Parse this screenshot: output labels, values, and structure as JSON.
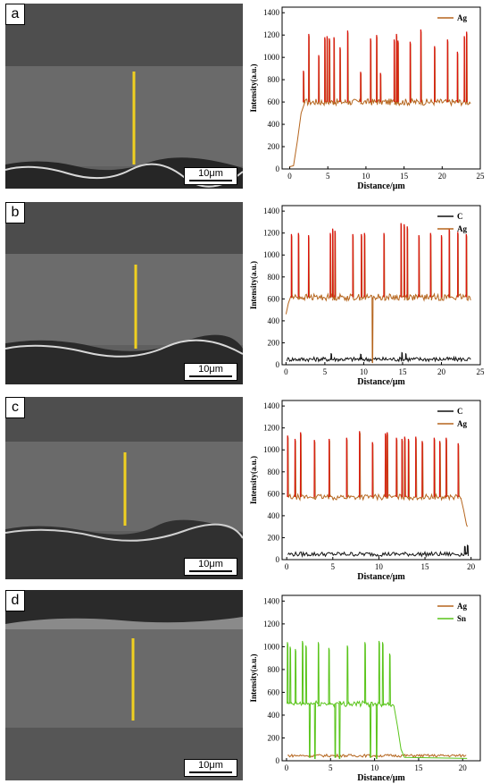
{
  "panels": [
    {
      "label": "a",
      "scale": "10μm"
    },
    {
      "label": "b",
      "scale": "10μm"
    },
    {
      "label": "c",
      "scale": "10μm"
    },
    {
      "label": "d",
      "scale": "10μm"
    }
  ],
  "colors": {
    "Ag": "#b5651d",
    "C": "#111111",
    "Sn": "#59c41a",
    "peak": "#e01010",
    "line": "#f0d020"
  },
  "chart_data": [
    {
      "type": "line",
      "title": "",
      "xlabel": "Distance/μm",
      "ylabel": "Intensity(a.u.)",
      "xlim": [
        -1,
        25
      ],
      "ylim": [
        0,
        1450
      ],
      "xticks": [
        0,
        5,
        10,
        15,
        20,
        25
      ],
      "yticks": [
        0,
        200,
        400,
        600,
        800,
        1000,
        1200,
        1400
      ],
      "legend": "top-right",
      "series": [
        {
          "name": "Ag",
          "color": "#b5651d",
          "peak_color": "#e01010",
          "baseline": 600,
          "noise": 30,
          "rise": [
            [
              0,
              20
            ],
            [
              0.5,
              30
            ],
            [
              1.0,
              250
            ],
            [
              1.5,
              500
            ],
            [
              2.0,
              600
            ]
          ],
          "peaks": [
            [
              1.8,
              880
            ],
            [
              2.5,
              1210
            ],
            [
              3.8,
              1020
            ],
            [
              4.6,
              1180
            ],
            [
              4.9,
              1190
            ],
            [
              5.2,
              1170
            ],
            [
              5.8,
              1180
            ],
            [
              6.6,
              1090
            ],
            [
              7.6,
              1240
            ],
            [
              9.3,
              870
            ],
            [
              10.6,
              1170
            ],
            [
              11.4,
              1200
            ],
            [
              11.9,
              860
            ],
            [
              13.7,
              1160
            ],
            [
              14.0,
              1210
            ],
            [
              14.2,
              1150
            ],
            [
              15.8,
              1140
            ],
            [
              17.2,
              1250
            ],
            [
              19.0,
              1100
            ],
            [
              20.7,
              1160
            ],
            [
              22.0,
              1050
            ],
            [
              22.9,
              1190
            ],
            [
              23.2,
              1230
            ]
          ],
          "xmax": 23.8
        }
      ]
    },
    {
      "type": "line",
      "title": "",
      "xlabel": "Distance/μm",
      "ylabel": "Intensity(a.u.)",
      "xlim": [
        -0.5,
        25
      ],
      "ylim": [
        0,
        1450
      ],
      "xticks": [
        0,
        5,
        10,
        15,
        20,
        25
      ],
      "yticks": [
        0,
        200,
        400,
        600,
        800,
        1000,
        1200,
        1400
      ],
      "legend": "top-right",
      "series": [
        {
          "name": "C",
          "color": "#111111",
          "baseline": 50,
          "noise": 20,
          "peaks": [
            [
              5.8,
              100
            ],
            [
              9.6,
              95
            ],
            [
              14.9,
              110
            ],
            [
              15.4,
              100
            ]
          ],
          "xmax": 23.8
        },
        {
          "name": "Ag",
          "color": "#b5651d",
          "peak_color": "#e01010",
          "baseline": 615,
          "noise": 30,
          "rise": [
            [
              0,
              460
            ],
            [
              0.3,
              560
            ],
            [
              0.6,
              620
            ]
          ],
          "dips": [
            [
              11.1,
              20
            ]
          ],
          "peaks": [
            [
              0.7,
              1190
            ],
            [
              1.6,
              1200
            ],
            [
              2.9,
              1180
            ],
            [
              5.7,
              1200
            ],
            [
              6.0,
              1240
            ],
            [
              6.3,
              1220
            ],
            [
              8.6,
              1190
            ],
            [
              9.7,
              1190
            ],
            [
              10.1,
              1200
            ],
            [
              12.6,
              1200
            ],
            [
              14.8,
              1290
            ],
            [
              15.2,
              1280
            ],
            [
              15.6,
              1260
            ],
            [
              17.1,
              1180
            ],
            [
              18.6,
              1200
            ],
            [
              20.0,
              1180
            ],
            [
              21.0,
              1240
            ],
            [
              22.1,
              1210
            ],
            [
              23.2,
              1190
            ]
          ],
          "xmax": 23.8
        }
      ]
    },
    {
      "type": "line",
      "title": "",
      "xlabel": "Distance/μm",
      "ylabel": "Intensity(a.u.)",
      "xlim": [
        -0.5,
        21
      ],
      "ylim": [
        0,
        1450
      ],
      "xticks": [
        0,
        5,
        10,
        15,
        20
      ],
      "yticks": [
        0,
        200,
        400,
        600,
        800,
        1000,
        1200,
        1400
      ],
      "legend": "top-right",
      "series": [
        {
          "name": "C",
          "color": "#111111",
          "baseline": 50,
          "noise": 20,
          "peaks": [
            [
              19.3,
              120
            ],
            [
              19.6,
              130
            ]
          ],
          "xmax": 19.7
        },
        {
          "name": "Ag",
          "color": "#b5651d",
          "peak_color": "#e01010",
          "baseline": 570,
          "noise": 25,
          "tail": [
            [
              18.9,
              560
            ],
            [
              19.2,
              450
            ],
            [
              19.5,
              320
            ],
            [
              19.6,
              300
            ]
          ],
          "peaks": [
            [
              0.1,
              1130
            ],
            [
              0.9,
              1100
            ],
            [
              1.5,
              1160
            ],
            [
              3.0,
              1090
            ],
            [
              4.6,
              1100
            ],
            [
              6.5,
              1110
            ],
            [
              7.9,
              1170
            ],
            [
              9.3,
              1070
            ],
            [
              10.7,
              1150
            ],
            [
              10.9,
              1160
            ],
            [
              11.9,
              1110
            ],
            [
              12.5,
              1100
            ],
            [
              12.8,
              1120
            ],
            [
              13.2,
              1100
            ],
            [
              14.0,
              1120
            ],
            [
              14.7,
              1080
            ],
            [
              16.0,
              1110
            ],
            [
              16.6,
              1080
            ],
            [
              17.3,
              1110
            ],
            [
              18.6,
              1060
            ]
          ],
          "xmax": 19.6
        }
      ]
    },
    {
      "type": "line",
      "title": "",
      "xlabel": "Distance/μm",
      "ylabel": "Intensity(a.u.)",
      "xlim": [
        -0.5,
        22
      ],
      "ylim": [
        0,
        1450
      ],
      "xticks": [
        0,
        5,
        10,
        15,
        20
      ],
      "yticks": [
        0,
        200,
        400,
        600,
        800,
        1000,
        1200,
        1400
      ],
      "legend": "top-right",
      "series": [
        {
          "name": "Ag",
          "color": "#b5651d",
          "baseline": 45,
          "noise": 12,
          "peaks": [],
          "xmax": 20.5
        },
        {
          "name": "Sn",
          "color": "#59c41a",
          "baseline": 500,
          "noise": 25,
          "tail": [
            [
              12.2,
              480
            ],
            [
              12.6,
              300
            ],
            [
              13.0,
              100
            ],
            [
              13.4,
              30
            ],
            [
              20.5,
              20
            ]
          ],
          "dips": [
            [
              2.6,
              30
            ],
            [
              3.2,
              20
            ],
            [
              5.5,
              30
            ],
            [
              6.0,
              20
            ],
            [
              9.5,
              30
            ],
            [
              10.2,
              20
            ]
          ],
          "peaks": [
            [
              0.1,
              1040
            ],
            [
              0.4,
              1000
            ],
            [
              1.0,
              980
            ],
            [
              1.8,
              1050
            ],
            [
              2.2,
              1010
            ],
            [
              3.6,
              1040
            ],
            [
              4.8,
              990
            ],
            [
              6.9,
              1010
            ],
            [
              8.9,
              1040
            ],
            [
              10.5,
              1050
            ],
            [
              10.9,
              1040
            ],
            [
              11.7,
              940
            ]
          ],
          "xmax": 12.2
        }
      ]
    }
  ]
}
